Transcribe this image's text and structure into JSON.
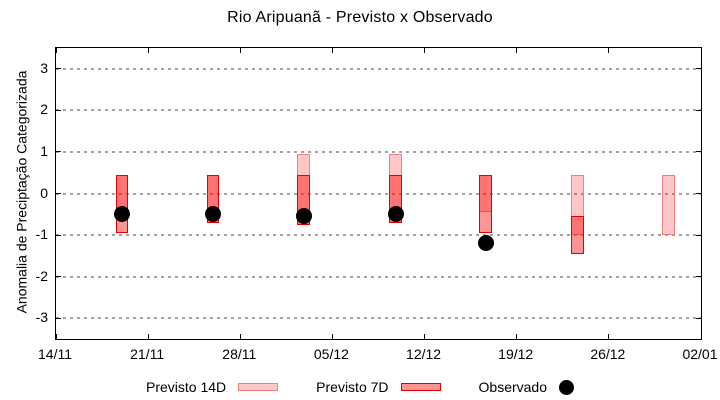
{
  "title": "Rio Aripuanã - Previsto x Observado",
  "ylabel": "Anomalia de Preciptação Categorizada",
  "legend": [
    {
      "label": "Previsto 14D",
      "swatch": "light-pink-box"
    },
    {
      "label": "Previsto 7D",
      "swatch": "red-box"
    },
    {
      "label": "Observado",
      "swatch": "black-dot"
    }
  ],
  "colors": {
    "previsto14_fill": "rgba(255,0,0,0.22)",
    "previsto14_border": "#f08080",
    "previsto7_fill": "rgba(255,0,0,0.42)",
    "previsto7_border": "#e60000",
    "observado": "#000000",
    "grid": "#a3a3a3",
    "axis": "#000000",
    "background": "#ffffff"
  },
  "chart_data": {
    "type": "bar",
    "subtype": "floating-range-boxes-with-scatter-overlay",
    "title": "Rio Aripuanã - Previsto x Observado",
    "xlabel": "",
    "ylabel": "Anomalia de Preciptação Categorizada",
    "ylim": [
      -3.5,
      3.5
    ],
    "y_ticks": [
      -3,
      -2,
      -1,
      0,
      1,
      2,
      3
    ],
    "x_ticks": [
      "14/11",
      "21/11",
      "28/11",
      "05/12",
      "12/12",
      "19/12",
      "26/12",
      "02/01"
    ],
    "grid": true,
    "grid_style": "dashed-horizontal-only",
    "legend_position": "bottom-outside",
    "bars": [
      {
        "x_frac": 0.1023,
        "previsto14": [
          0.45,
          -0.55
        ],
        "previsto7": [
          0.45,
          -0.95
        ],
        "observado": -0.5
      },
      {
        "x_frac": 0.2434,
        "previsto14": [
          0.45,
          -0.7
        ],
        "previsto7": [
          0.45,
          -0.7
        ],
        "observado": -0.5
      },
      {
        "x_frac": 0.384,
        "previsto14": [
          0.95,
          -0.75
        ],
        "previsto7": [
          0.45,
          -0.75
        ],
        "observado": -0.55
      },
      {
        "x_frac": 0.5267,
        "previsto14": [
          0.95,
          -0.7
        ],
        "previsto7": [
          0.45,
          -0.7
        ],
        "observado": -0.5
      },
      {
        "x_frac": 0.666,
        "previsto14": [
          0.45,
          -0.45
        ],
        "previsto7": [
          0.45,
          -0.95
        ],
        "observado": -1.2
      },
      {
        "x_frac": 0.8085,
        "previsto14": [
          0.45,
          -1.0
        ],
        "previsto7": [
          -0.55,
          -1.45
        ],
        "observado": null
      },
      {
        "x_frac": 0.949,
        "previsto14": [
          0.45,
          -1.0
        ],
        "previsto7": null,
        "observado": null
      }
    ],
    "bar_width_frac": 0.02
  }
}
